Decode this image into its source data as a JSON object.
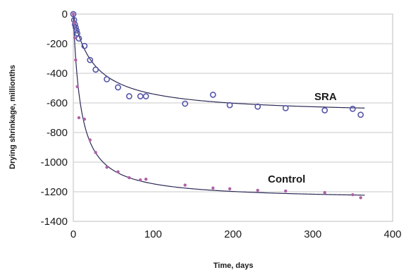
{
  "chart_data": {
    "type": "scatter",
    "title": "",
    "xlabel": "Time, days",
    "ylabel": "Drying shrinkage, millionths",
    "xlim": [
      0,
      400
    ],
    "ylim": [
      -1400,
      0
    ],
    "x_ticks": [
      "0",
      "100",
      "200",
      "300",
      "400"
    ],
    "y_ticks": [
      "0",
      "-200",
      "-400",
      "-600",
      "-800",
      "-1000",
      "-1200",
      "-1400"
    ],
    "grid": "horizontal",
    "colors": {
      "SRA": "#5555aa",
      "Control": "#b060a8",
      "fit": "#2a2a55",
      "grid": "#c8c8c8"
    },
    "series": [
      {
        "name": "SRA",
        "marker": "open-circle",
        "x": [
          0,
          1,
          2,
          3,
          4,
          5,
          7,
          14,
          21,
          28,
          42,
          56,
          70,
          84,
          91,
          140,
          175,
          196,
          231,
          266,
          315,
          350,
          360
        ],
        "y": [
          0,
          -40,
          -70,
          -90,
          -110,
          -130,
          -165,
          -215,
          -310,
          -375,
          -440,
          -495,
          -555,
          -555,
          -555,
          -605,
          -545,
          -615,
          -625,
          -635,
          -650,
          -640,
          -680
        ]
      },
      {
        "name": "Control",
        "marker": "filled-dot",
        "x": [
          0,
          1,
          2,
          3,
          5,
          7,
          14,
          21,
          28,
          42,
          56,
          70,
          84,
          91,
          140,
          175,
          196,
          231,
          266,
          315,
          350,
          360
        ],
        "y": [
          0,
          -60,
          -160,
          -310,
          -490,
          -700,
          -710,
          -850,
          -935,
          -1035,
          -1065,
          -1105,
          -1120,
          -1115,
          -1155,
          -1175,
          -1180,
          -1190,
          -1195,
          -1205,
          -1220,
          -1240
        ]
      }
    ]
  }
}
